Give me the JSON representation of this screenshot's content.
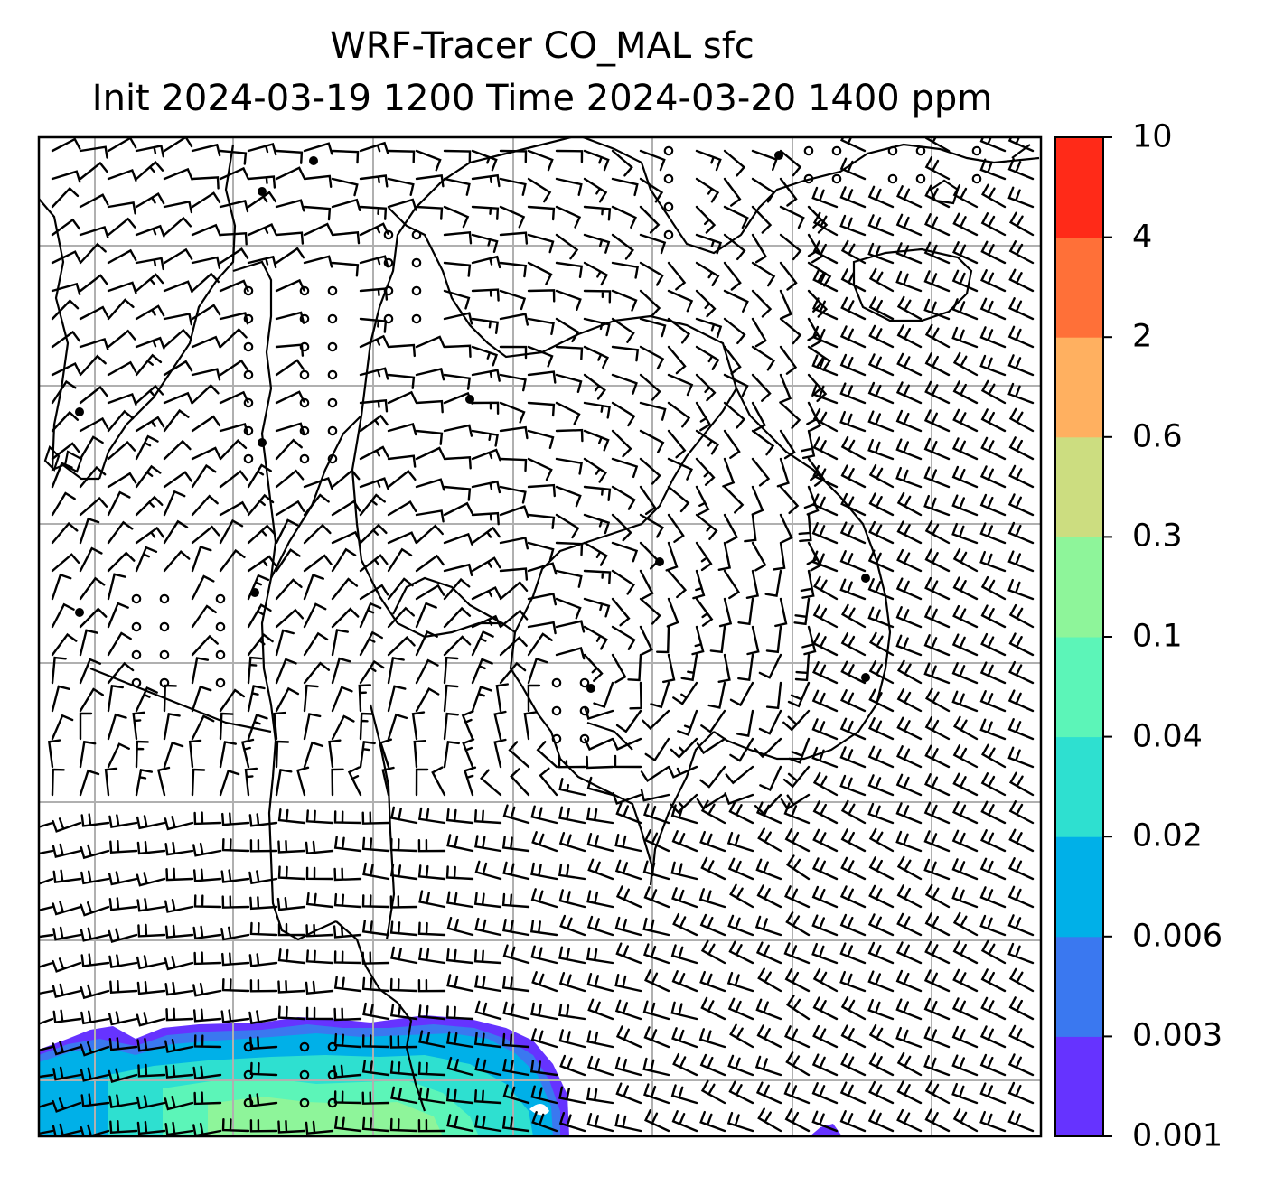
{
  "title": {
    "line1": "WRF-Tracer CO_MAL sfc",
    "line2": "Init 2024-03-19 1200 Time 2024-03-20 1400 ppm"
  },
  "colorbar": {
    "labels": [
      "0.001",
      "0.003",
      "0.006",
      "0.02",
      "0.04",
      "0.1",
      "0.3",
      "0.6",
      "2",
      "4",
      "10"
    ],
    "colors": [
      "#6633ff",
      "#3a78f0",
      "#00b0e8",
      "#2ee0d0",
      "#5cf5b8",
      "#8ef59a",
      "#ccdd80",
      "#ffb060",
      "#ff7038",
      "#ff2a18"
    ]
  },
  "map": {
    "gridlines": true,
    "gridline_color": "#b0b0b0",
    "coastline_color": "#000000",
    "tracer_area": "south-west corner"
  }
}
